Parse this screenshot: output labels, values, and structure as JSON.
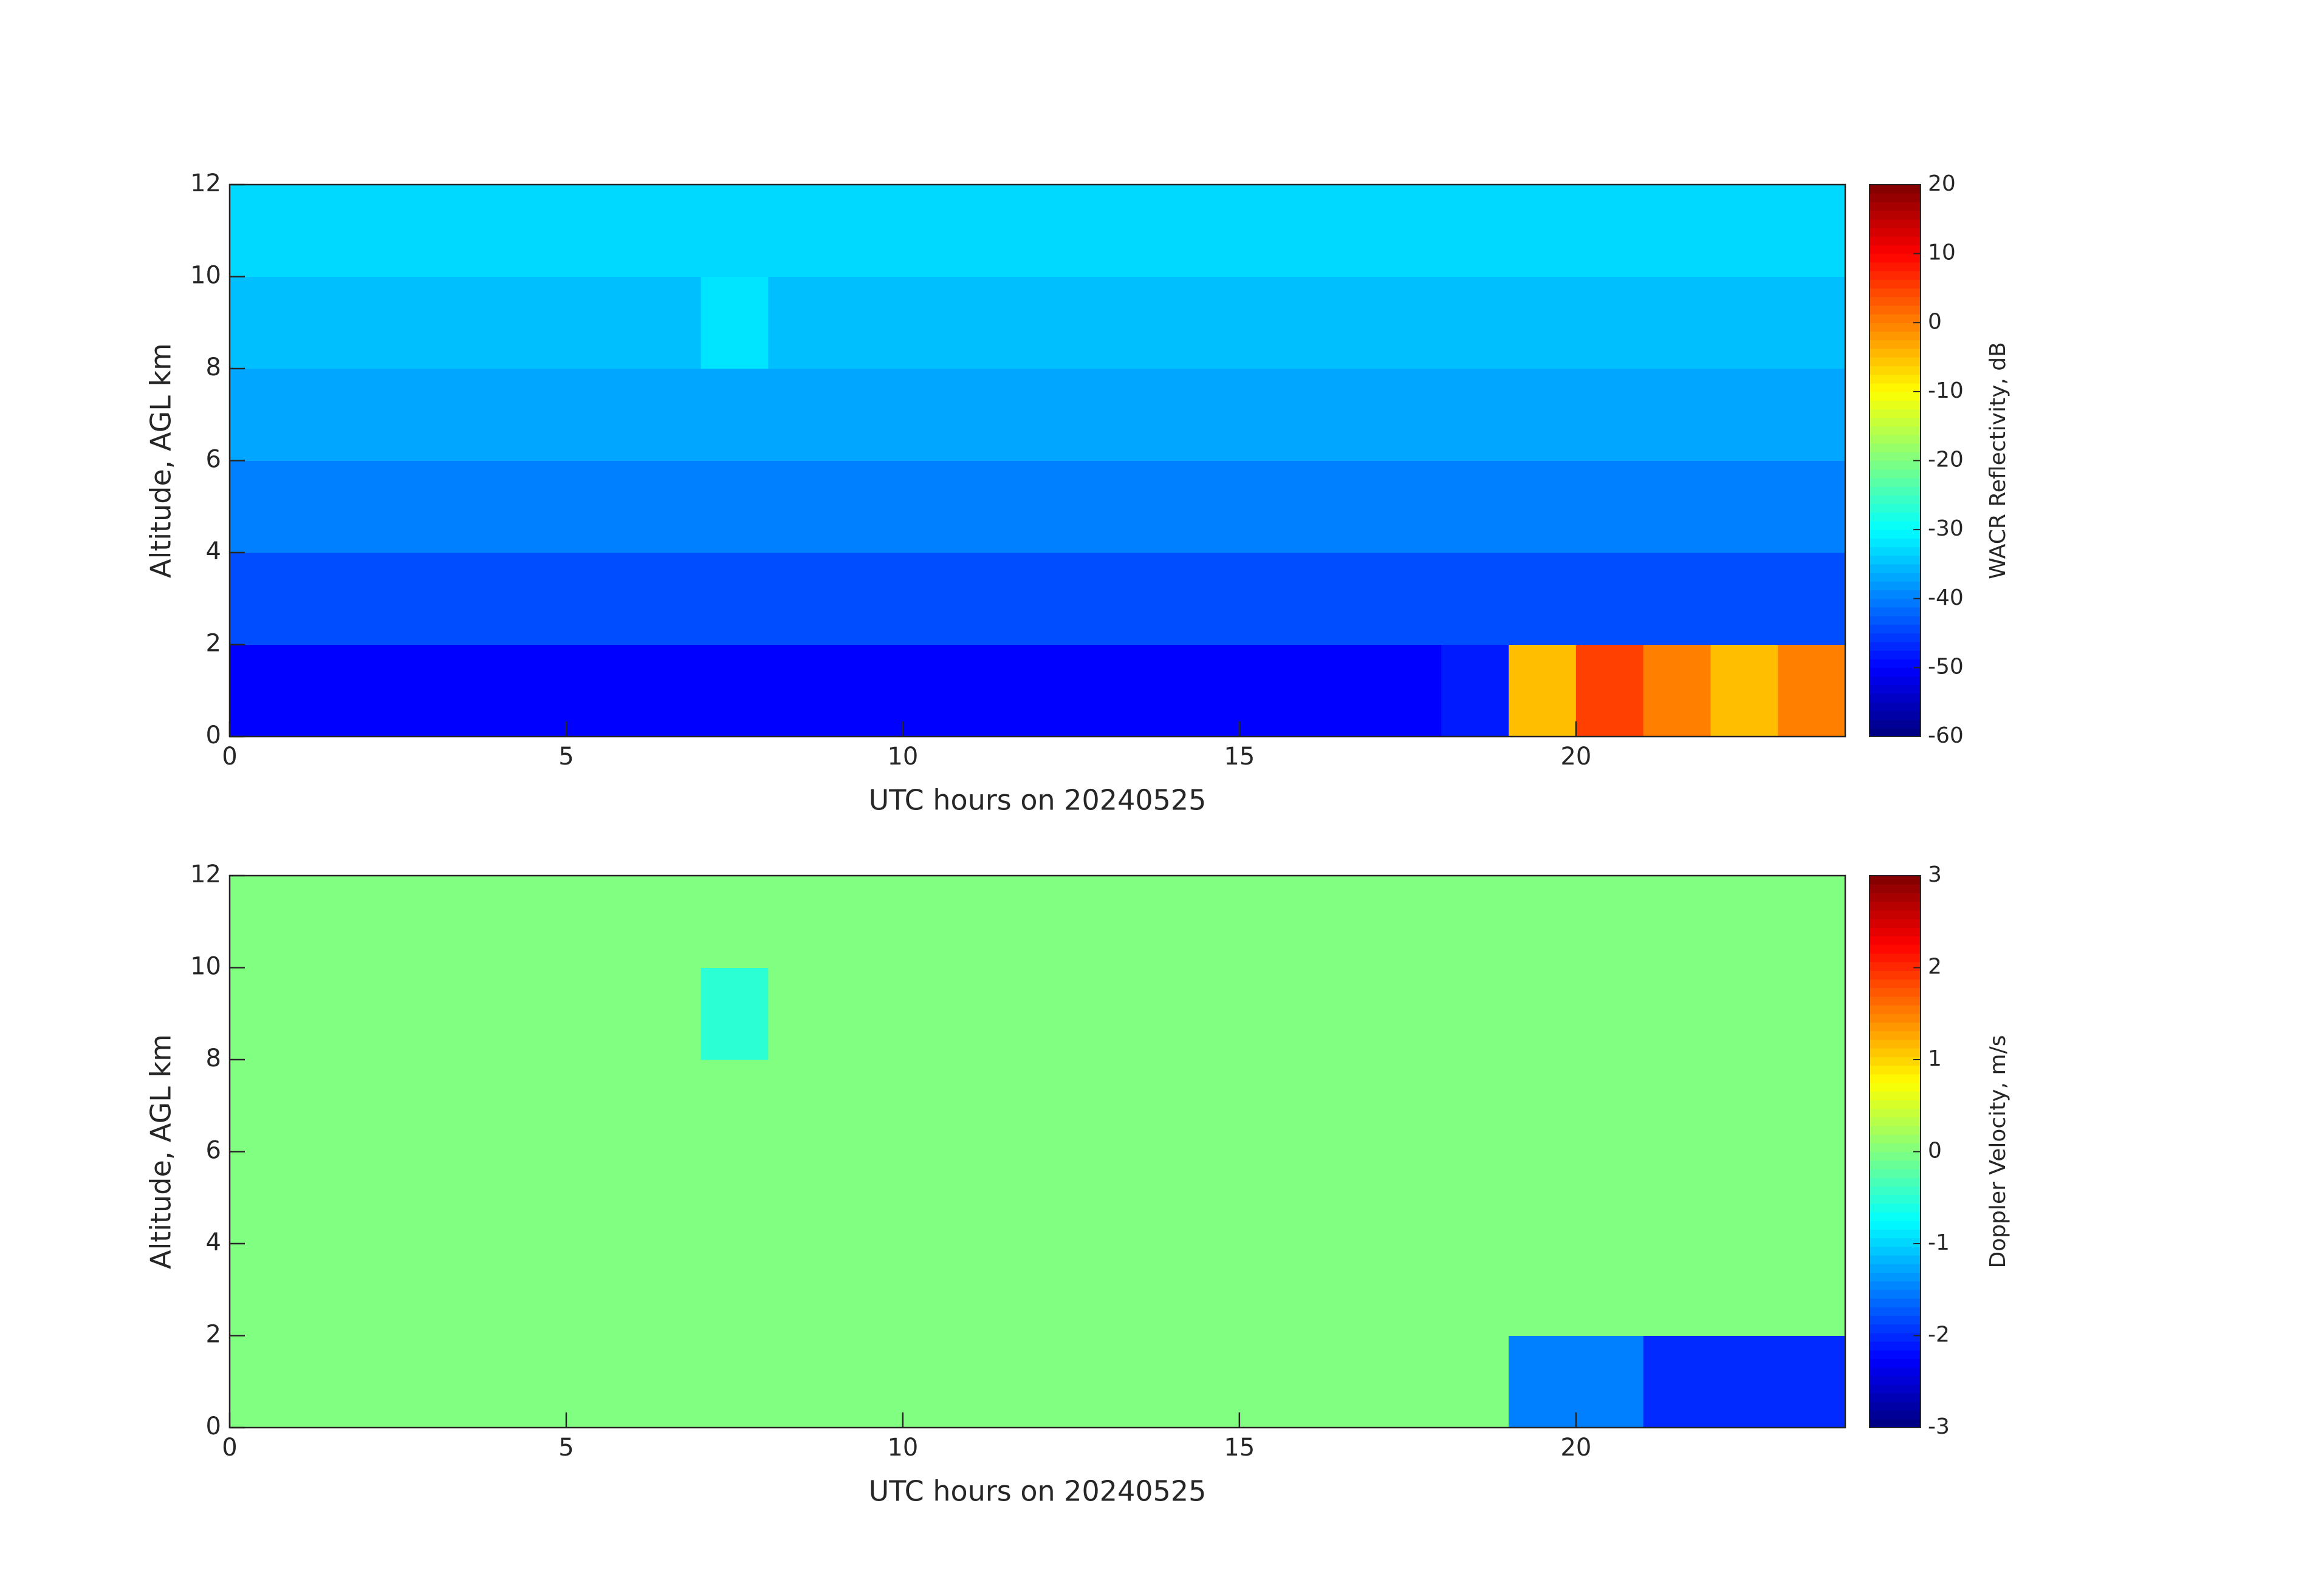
{
  "chart_data": [
    {
      "type": "heatmap",
      "colormap": "jet",
      "xlabel": "UTC hours on 20240525",
      "ylabel": "Altitude, AGL km",
      "xlim": [
        0,
        24
      ],
      "ylim": [
        0,
        12
      ],
      "xticks": [
        0,
        5,
        10,
        15,
        20
      ],
      "yticks": [
        0,
        2,
        4,
        6,
        8,
        10,
        12
      ],
      "x_bins": [
        0,
        1,
        2,
        3,
        4,
        5,
        6,
        7,
        8,
        9,
        10,
        11,
        12,
        13,
        14,
        15,
        16,
        17,
        18,
        19,
        20,
        21,
        22,
        23,
        24
      ],
      "y_bins": [
        0,
        2,
        4,
        6,
        8,
        10,
        12
      ],
      "z": [
        [
          -50,
          -50,
          -50,
          -50,
          -50,
          -50,
          -50,
          -50,
          -50,
          -50,
          -50,
          -50,
          -50,
          -50,
          -50,
          -50,
          -50,
          -50,
          -48,
          -5,
          5,
          0,
          -5,
          0
        ],
        [
          -44,
          -44,
          -44,
          -44,
          -44,
          -44,
          -44,
          -44,
          -44,
          -44,
          -44,
          -44,
          -44,
          -44,
          -44,
          -44,
          -44,
          -44,
          -44,
          -44,
          -44,
          -44,
          -44,
          -44
        ],
        [
          -40,
          -40,
          -40,
          -40,
          -40,
          -40,
          -40,
          -40,
          -40,
          -40,
          -40,
          -40,
          -40,
          -40,
          -40,
          -40,
          -40,
          -40,
          -40,
          -40,
          -40,
          -40,
          -40,
          -40
        ],
        [
          -37,
          -37,
          -37,
          -37,
          -37,
          -37,
          -37,
          -37,
          -37,
          -37,
          -37,
          -37,
          -37,
          -37,
          -37,
          -37,
          -37,
          -37,
          -37,
          -37,
          -37,
          -37,
          -37,
          -37
        ],
        [
          -35,
          -35,
          -35,
          -35,
          -35,
          -35,
          -35,
          -32,
          -35,
          -35,
          -35,
          -35,
          -35,
          -35,
          -35,
          -35,
          -35,
          -35,
          -35,
          -35,
          -35,
          -35,
          -35,
          -35
        ],
        [
          -33,
          -33,
          -33,
          -33,
          -33,
          -33,
          -33,
          -33,
          -33,
          -33,
          -33,
          -33,
          -33,
          -33,
          -33,
          -33,
          -33,
          -33,
          -33,
          -33,
          -33,
          -33,
          -33,
          -33
        ]
      ],
      "colorbar": {
        "label": "WACR Reflectivity, dB",
        "lim": [
          -60,
          20
        ],
        "ticks": [
          -60,
          -50,
          -40,
          -30,
          -20,
          -10,
          0,
          10,
          20
        ]
      }
    },
    {
      "type": "heatmap",
      "colormap": "jet",
      "xlabel": "UTC hours on 20240525",
      "ylabel": "Altitude, AGL km",
      "xlim": [
        0,
        24
      ],
      "ylim": [
        0,
        12
      ],
      "xticks": [
        0,
        5,
        10,
        15,
        20
      ],
      "yticks": [
        0,
        2,
        4,
        6,
        8,
        10,
        12
      ],
      "x_bins": [
        0,
        1,
        2,
        3,
        4,
        5,
        6,
        7,
        8,
        9,
        10,
        11,
        12,
        13,
        14,
        15,
        16,
        17,
        18,
        19,
        20,
        21,
        22,
        23,
        24
      ],
      "y_bins": [
        0,
        2,
        4,
        6,
        8,
        10,
        12
      ],
      "z": [
        [
          0,
          0,
          0,
          0,
          0,
          0,
          0,
          0,
          0,
          0,
          0,
          0,
          0,
          0,
          0,
          0,
          0,
          0,
          0,
          -1.5,
          -1.5,
          -2,
          -2,
          -2
        ],
        [
          0,
          0,
          0,
          0,
          0,
          0,
          0,
          0,
          0,
          0,
          0,
          0,
          0,
          0,
          0,
          0,
          0,
          0,
          0,
          0,
          0,
          0,
          0,
          0
        ],
        [
          0,
          0,
          0,
          0,
          0,
          0,
          0,
          0,
          0,
          0,
          0,
          0,
          0,
          0,
          0,
          0,
          0,
          0,
          0,
          0,
          0,
          0,
          0,
          0
        ],
        [
          0,
          0,
          0,
          0,
          0,
          0,
          0,
          0,
          0,
          0,
          0,
          0,
          0,
          0,
          0,
          0,
          0,
          0,
          0,
          0,
          0,
          0,
          0,
          0
        ],
        [
          0,
          0,
          0,
          0,
          0,
          0,
          0,
          -0.5,
          0,
          0,
          0,
          0,
          0,
          0,
          0,
          0,
          0,
          0,
          0,
          0,
          0,
          0,
          0,
          0
        ],
        [
          0,
          0,
          0,
          0,
          0,
          0,
          0,
          0,
          0,
          0,
          0,
          0,
          0,
          0,
          0,
          0,
          0,
          0,
          0,
          0,
          0,
          0,
          0,
          0
        ]
      ],
      "colorbar": {
        "label": "Doppler Velocity, m/s",
        "lim": [
          -3,
          3
        ],
        "ticks": [
          -3,
          -2,
          -1,
          0,
          1,
          2,
          3
        ]
      }
    }
  ]
}
